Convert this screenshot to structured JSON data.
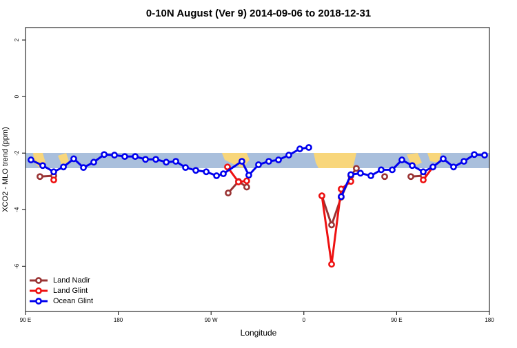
{
  "chart_data": {
    "type": "line",
    "title": "0-10N August (Ver 9)   2014-09-06 to 2018-12-31",
    "x_label": "Longitude",
    "y_label": "XCO2 - MLO trend (ppm)",
    "xlim": [
      90,
      540
    ],
    "ylim": [
      -7.6,
      2.44
    ],
    "xticks": [
      {
        "value": 90,
        "label": "90 E"
      },
      180,
      {
        "value": 270,
        "label": "90 W"
      },
      {
        "value": 360,
        "label": "0"
      },
      {
        "value": 450,
        "label": "90 E"
      },
      {
        "value": 540,
        "label": "180"
      }
    ],
    "yticks": [
      -6,
      -4,
      -2,
      0,
      2
    ],
    "legend": "bottom-left",
    "series": [
      {
        "name": "Land Nadir",
        "color": "#993333",
        "x": [
          104.0,
          117.4,
          null,
          286.6,
          296.6,
          304.6,
          null,
          377.5,
          386.9,
          396.2,
          405.6,
          410.9,
          null,
          438.4,
          null,
          463.8,
          475.8
        ],
        "values": [
          -2.83,
          -2.8,
          null,
          -3.41,
          -3.0,
          -3.2,
          null,
          -3.51,
          -4.54,
          -3.56,
          -2.8,
          -2.54,
          null,
          -2.83,
          null,
          -2.83,
          -2.8
        ]
      },
      {
        "name": "Land Glint",
        "color": "#ee1111",
        "x": [
          117.4,
          null,
          285.9,
          296.6,
          304.6,
          null,
          377.5,
          386.9,
          396.2,
          405.6,
          null,
          475.8,
          485.2
        ],
        "values": [
          -2.95,
          null,
          -2.49,
          -3.02,
          -2.98,
          null,
          -3.51,
          -5.93,
          -3.27,
          -3.0,
          null,
          -2.95,
          -2.49
        ]
      },
      {
        "name": "Ocean Glint",
        "color": "#0000ee",
        "x": [
          95.3,
          106.7,
          117.4,
          126.8,
          136.8,
          146.2,
          156.2,
          166.3,
          176.3,
          186.3,
          196.4,
          206.4,
          216.4,
          226.5,
          235.8,
          245.2,
          255.2,
          265.3,
          275.3,
          281.9,
          299.9,
          306.6,
          316.0,
          326.0,
          335.4,
          345.4,
          356.1,
          364.8,
          null,
          396.2,
          405.6,
          414.9,
          425.0,
          435.0,
          445.7,
          455.1,
          465.1,
          475.8,
          485.2,
          495.2,
          505.2,
          515.3,
          525.3,
          535.3
        ],
        "values": [
          -2.24,
          -2.44,
          -2.66,
          -2.49,
          -2.2,
          -2.51,
          -2.32,
          -2.05,
          -2.07,
          -2.12,
          -2.12,
          -2.22,
          -2.22,
          -2.32,
          -2.29,
          -2.51,
          -2.61,
          -2.66,
          -2.8,
          -2.73,
          -2.29,
          -2.78,
          -2.41,
          -2.29,
          -2.24,
          -2.07,
          -1.85,
          -1.8,
          null,
          -3.54,
          -2.76,
          -2.71,
          -2.8,
          -2.59,
          -2.59,
          -2.24,
          -2.44,
          -2.66,
          -2.49,
          -2.2,
          -2.49,
          -2.29,
          -2.05,
          -2.07
        ]
      }
    ]
  }
}
